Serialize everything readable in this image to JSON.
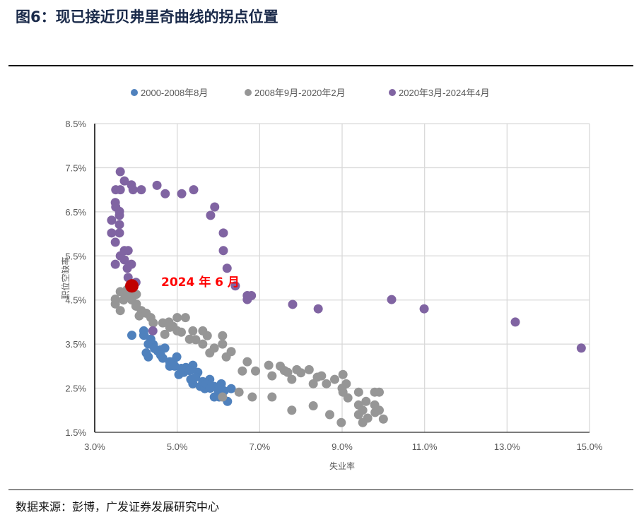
{
  "title": "图6：现已接近贝弗里奇曲线的拐点位置",
  "source": "数据来源：彭博，广发证券发展研究中心",
  "chart_data": {
    "type": "scatter",
    "xlabel": "失业率",
    "ylabel": "职位空缺率",
    "xlim": [
      3.0,
      15.0
    ],
    "ylim": [
      1.5,
      8.5
    ],
    "xticks": [
      "3.0%",
      "5.0%",
      "7.0%",
      "9.0%",
      "11.0%",
      "13.0%",
      "15.0%"
    ],
    "xtick_values": [
      3,
      5,
      7,
      9,
      11,
      13,
      15
    ],
    "yticks": [
      "8.5%",
      "7.5%",
      "6.5%",
      "5.5%",
      "4.5%",
      "3.5%",
      "2.5%",
      "1.5%"
    ],
    "ytick_values": [
      8.5,
      7.5,
      6.5,
      5.5,
      4.5,
      3.5,
      2.5,
      1.5
    ],
    "legend_position": "top",
    "series": [
      {
        "name": "2000-2008年8月",
        "color": "#4F81BD",
        "points": [
          [
            3.9,
            3.7
          ],
          [
            4.19,
            3.8
          ],
          [
            4.19,
            3.7
          ],
          [
            4.2,
            3.7
          ],
          [
            4.3,
            3.5
          ],
          [
            4.42,
            3.49
          ],
          [
            4.34,
            3.5
          ],
          [
            4.3,
            3.21
          ],
          [
            4.25,
            3.3
          ],
          [
            4.36,
            3.61
          ],
          [
            4.53,
            3.34
          ],
          [
            4.6,
            3.37
          ],
          [
            4.7,
            3.41
          ],
          [
            4.65,
            3.18
          ],
          [
            4.82,
            3.1
          ],
          [
            4.82,
            3.0
          ],
          [
            4.99,
            3.21
          ],
          [
            4.94,
            3.0
          ],
          [
            5.04,
            2.81
          ],
          [
            5.16,
            2.86
          ],
          [
            5.21,
            2.97
          ],
          [
            5.38,
            3.02
          ],
          [
            5.5,
            2.86
          ],
          [
            5.38,
            2.6
          ],
          [
            5.33,
            2.7
          ],
          [
            5.56,
            2.54
          ],
          [
            5.62,
            2.65
          ],
          [
            5.79,
            2.7
          ],
          [
            5.67,
            2.49
          ],
          [
            5.9,
            2.54
          ],
          [
            5.9,
            2.3
          ],
          [
            6.07,
            2.6
          ],
          [
            6.14,
            2.44
          ],
          [
            6.31,
            2.49
          ],
          [
            6.22,
            2.2
          ],
          [
            6.02,
            2.3
          ],
          [
            4.45,
            3.4
          ],
          [
            4.6,
            3.25
          ],
          [
            4.9,
            3.1
          ],
          [
            5.1,
            2.95
          ],
          [
            5.3,
            2.9
          ],
          [
            5.45,
            2.75
          ],
          [
            5.7,
            2.6
          ],
          [
            5.8,
            2.5
          ],
          [
            6.0,
            2.45
          ]
        ]
      },
      {
        "name": "2008年9月-2020年2月",
        "color": "#969696",
        "points": [
          [
            3.5,
            4.52
          ],
          [
            3.5,
            4.41
          ],
          [
            3.62,
            4.26
          ],
          [
            3.74,
            4.58
          ],
          [
            3.84,
            4.63
          ],
          [
            4.01,
            4.63
          ],
          [
            4.01,
            4.41
          ],
          [
            4.0,
            4.36
          ],
          [
            4.13,
            4.26
          ],
          [
            4.08,
            4.14
          ],
          [
            4.25,
            4.2
          ],
          [
            4.36,
            4.1
          ],
          [
            4.42,
            3.98
          ],
          [
            3.62,
            4.69
          ],
          [
            3.79,
            4.74
          ],
          [
            3.7,
            4.5
          ],
          [
            3.9,
            4.5
          ],
          [
            4.65,
            3.98
          ],
          [
            4.82,
            3.88
          ],
          [
            4.7,
            3.72
          ],
          [
            5.0,
            4.1
          ],
          [
            5.2,
            4.1
          ],
          [
            5.1,
            3.77
          ],
          [
            5.38,
            3.8
          ],
          [
            5.62,
            3.8
          ],
          [
            5.73,
            3.69
          ],
          [
            5.3,
            3.61
          ],
          [
            5.62,
            3.5
          ],
          [
            5.9,
            3.41
          ],
          [
            5.79,
            3.3
          ],
          [
            6.1,
            3.69
          ],
          [
            6.1,
            3.5
          ],
          [
            6.31,
            3.33
          ],
          [
            6.19,
            3.21
          ],
          [
            4.9,
            3.9
          ],
          [
            5.0,
            3.8
          ],
          [
            4.8,
            4.0
          ],
          [
            5.45,
            3.6
          ],
          [
            6.7,
            3.1
          ],
          [
            6.58,
            2.89
          ],
          [
            6.9,
            2.89
          ],
          [
            7.22,
            3.02
          ],
          [
            7.3,
            2.78
          ],
          [
            7.5,
            3.0
          ],
          [
            7.68,
            2.86
          ],
          [
            7.9,
            2.92
          ],
          [
            7.78,
            2.7
          ],
          [
            8.2,
            2.92
          ],
          [
            8.3,
            2.6
          ],
          [
            8.5,
            2.78
          ],
          [
            8.62,
            2.6
          ],
          [
            8.82,
            2.7
          ],
          [
            9.02,
            2.81
          ],
          [
            9.1,
            2.6
          ],
          [
            9.02,
            2.41
          ],
          [
            9.14,
            2.28
          ],
          [
            9.4,
            2.41
          ],
          [
            9.4,
            2.12
          ],
          [
            9.58,
            2.2
          ],
          [
            9.79,
            2.41
          ],
          [
            9.9,
            2.41
          ],
          [
            9.79,
            2.12
          ],
          [
            9.9,
            2.0
          ],
          [
            10.0,
            1.8
          ],
          [
            9.62,
            1.82
          ],
          [
            9.5,
            1.72
          ],
          [
            9.4,
            1.9
          ],
          [
            8.98,
            1.72
          ],
          [
            8.7,
            1.9
          ],
          [
            8.3,
            2.1
          ],
          [
            7.78,
            2.0
          ],
          [
            7.3,
            2.3
          ],
          [
            6.82,
            2.3
          ],
          [
            6.5,
            2.41
          ],
          [
            6.1,
            2.3
          ],
          [
            7.6,
            2.9
          ],
          [
            8.0,
            2.85
          ],
          [
            8.4,
            2.75
          ],
          [
            9.0,
            2.5
          ],
          [
            9.5,
            2.0
          ],
          [
            9.8,
            1.95
          ]
        ]
      },
      {
        "name": "2020年3月-2024年4月",
        "color": "#8064A2",
        "points": [
          [
            3.62,
            7.41
          ],
          [
            3.72,
            7.2
          ],
          [
            3.89,
            7.11
          ],
          [
            3.93,
            7.0
          ],
          [
            4.13,
            7.0
          ],
          [
            3.51,
            7.0
          ],
          [
            3.62,
            7.0
          ],
          [
            4.51,
            7.1
          ],
          [
            4.71,
            6.91
          ],
          [
            5.11,
            6.91
          ],
          [
            5.4,
            7.0
          ],
          [
            5.91,
            6.61
          ],
          [
            5.81,
            6.42
          ],
          [
            6.12,
            6.02
          ],
          [
            6.12,
            5.62
          ],
          [
            6.21,
            5.22
          ],
          [
            6.41,
            4.82
          ],
          [
            6.7,
            4.6
          ],
          [
            6.8,
            4.6
          ],
          [
            6.7,
            4.51
          ],
          [
            7.8,
            4.4
          ],
          [
            8.42,
            4.3
          ],
          [
            10.2,
            4.51
          ],
          [
            10.99,
            4.3
          ],
          [
            13.2,
            4.0
          ],
          [
            14.8,
            3.41
          ],
          [
            3.5,
            6.71
          ],
          [
            3.51,
            6.61
          ],
          [
            3.6,
            6.51
          ],
          [
            3.6,
            6.42
          ],
          [
            3.6,
            6.21
          ],
          [
            3.41,
            6.31
          ],
          [
            3.41,
            6.02
          ],
          [
            3.6,
            6.02
          ],
          [
            3.5,
            5.81
          ],
          [
            3.72,
            5.62
          ],
          [
            3.81,
            5.62
          ],
          [
            3.62,
            5.5
          ],
          [
            3.89,
            5.31
          ],
          [
            3.5,
            5.31
          ],
          [
            3.79,
            5.22
          ],
          [
            3.72,
            5.41
          ],
          [
            3.81,
            5.01
          ],
          [
            4.0,
            4.9
          ],
          [
            4.41,
            3.8
          ]
        ]
      }
    ],
    "highlight": {
      "label": "2024 年 6 月",
      "x": 3.9,
      "y": 4.82,
      "color": "#C00000"
    }
  }
}
